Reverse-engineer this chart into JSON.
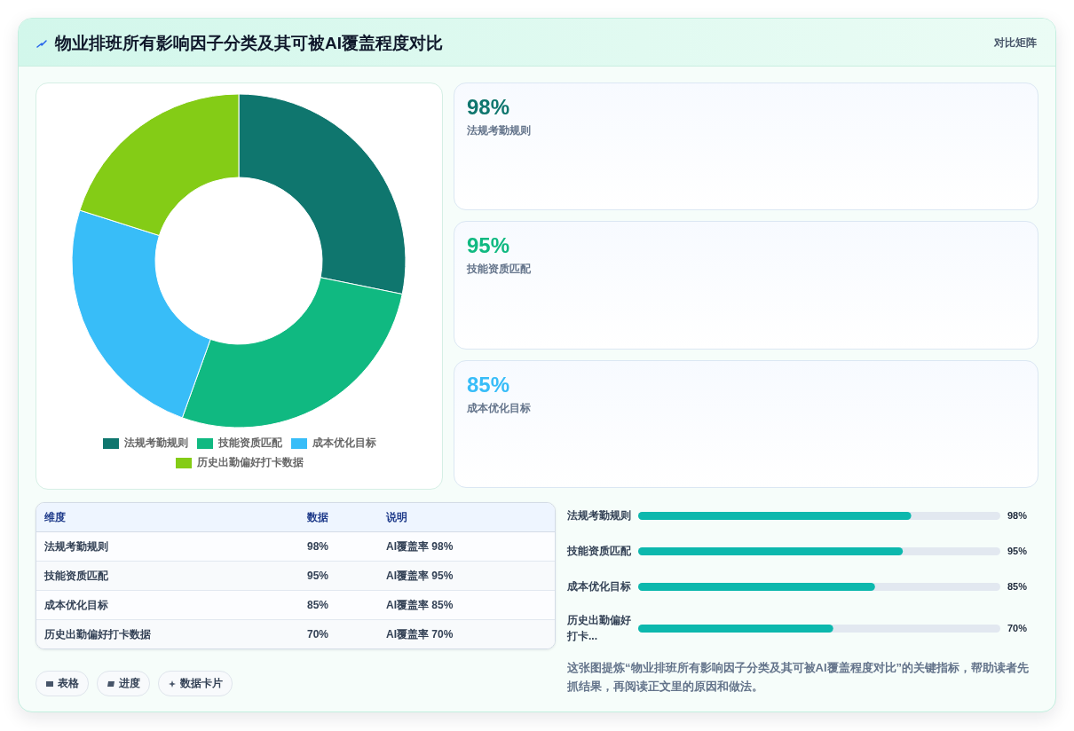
{
  "chart_data": [
    {
      "type": "other",
      "title": "物业排班所有影响因子分类及其可被AI覆盖程度对比",
      "subtitle": "对比矩阵"
    },
    {
      "type": "donut",
      "categories": [
        "法规考勤规则",
        "技能资质匹配",
        "成本优化目标",
        "历史出勤偏好打卡数据"
      ],
      "values": [
        28.2,
        27.3,
        24.4,
        20.1
      ],
      "colors": [
        "#0f766e",
        "#10b981",
        "#38bdf8",
        "#84cc16"
      ],
      "legend": "bottom"
    },
    {
      "type": "other",
      "categories": [
        "法规考勤规则",
        "技能资质匹配",
        "成本优化目标"
      ],
      "value_labels": [
        "98%",
        "95%",
        "85%"
      ]
    },
    {
      "type": "other",
      "categories": [
        "法规考勤规则",
        "技能资质匹配",
        "成本优化目标",
        "历史出勤偏好打卡数据"
      ],
      "value_labels": [
        "98%",
        "95%",
        "85%",
        "70%"
      ],
      "annotations": [
        "维度",
        "数据",
        "说明",
        "AI覆盖率 98%",
        "AI覆盖率 95%",
        "AI覆盖率 85%",
        "AI覆盖率 70%",
        "表格",
        "进度",
        "数据卡片"
      ]
    },
    {
      "type": "bar",
      "orientation": "horizontal",
      "categories": [
        "法规考勤规则",
        "技能资质匹配",
        "成本优化目标",
        "历史出勤偏好打卡..."
      ],
      "values": [
        98,
        95,
        85,
        70
      ],
      "value_labels": [
        "98%",
        "95%",
        "85%",
        "70%"
      ],
      "color": "#0cb8ad",
      "xlim": [
        0,
        130
      ],
      "tick_labels": "y",
      "annotations": [
        "这张图提炼“物业排班所有影响因子分类及其可被AI覆盖程度对比”的关键指标，帮助读者先抓结果，再阅读正文里的原因和做法。"
      ]
    }
  ]
}
